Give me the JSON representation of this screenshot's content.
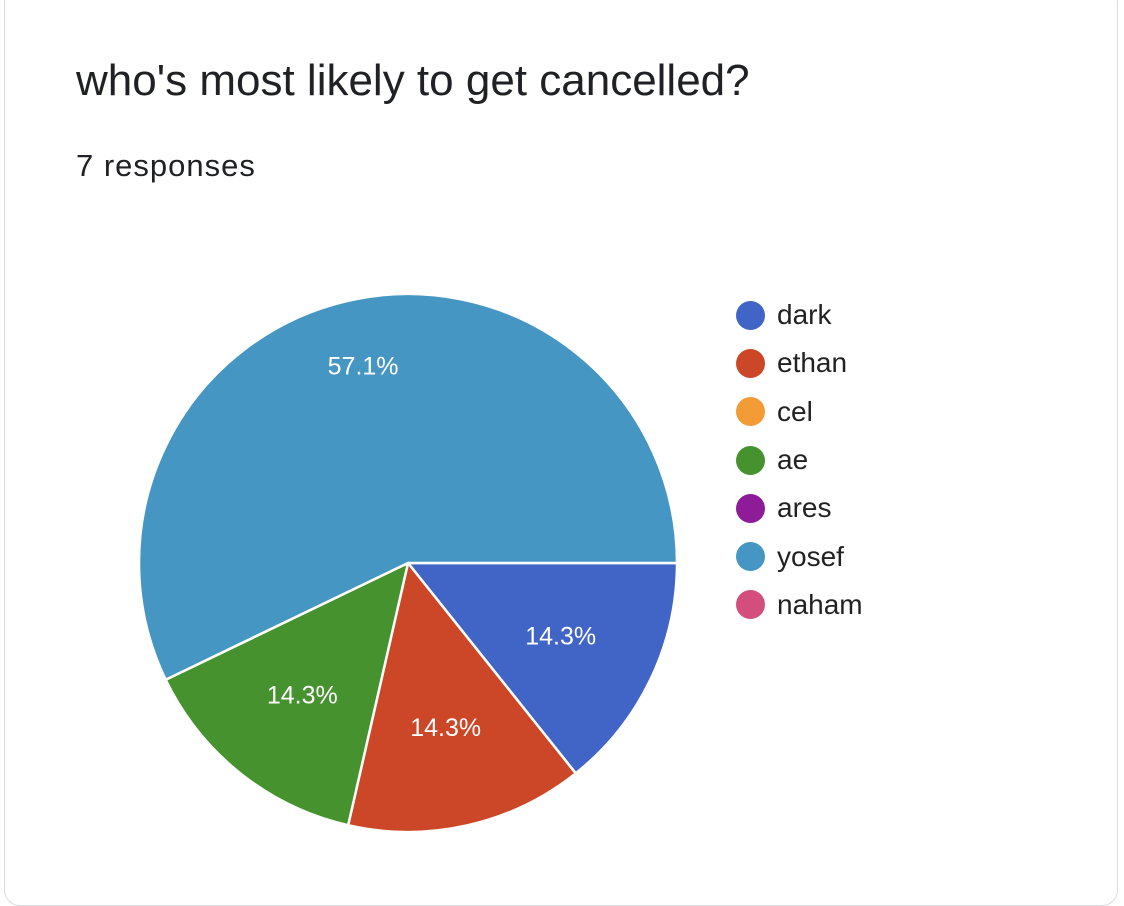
{
  "title": "who's most likely to get cancelled?",
  "subtitle": "7 responses",
  "chart_data": {
    "type": "pie",
    "title": "who's most likely to get cancelled?",
    "subtitle": "7 responses",
    "total_responses": 7,
    "legend_position": "right",
    "slices": [
      {
        "label": "dark",
        "count": 1,
        "percent": 14.3,
        "percent_label": "14.3%",
        "color": "#4065c6"
      },
      {
        "label": "ethan",
        "count": 1,
        "percent": 14.3,
        "percent_label": "14.3%",
        "color": "#cb4727"
      },
      {
        "label": "cel",
        "count": 0,
        "percent": 0,
        "percent_label": "",
        "color": "#f29b37"
      },
      {
        "label": "ae",
        "count": 1,
        "percent": 14.3,
        "percent_label": "14.3%",
        "color": "#45922f"
      },
      {
        "label": "ares",
        "count": 0,
        "percent": 0,
        "percent_label": "",
        "color": "#8e1b97"
      },
      {
        "label": "yosef",
        "count": 4,
        "percent": 57.1,
        "percent_label": "57.1%",
        "color": "#4596c3"
      },
      {
        "label": "naham",
        "count": 0,
        "percent": 0,
        "percent_label": "",
        "color": "#d34e7c"
      }
    ]
  }
}
